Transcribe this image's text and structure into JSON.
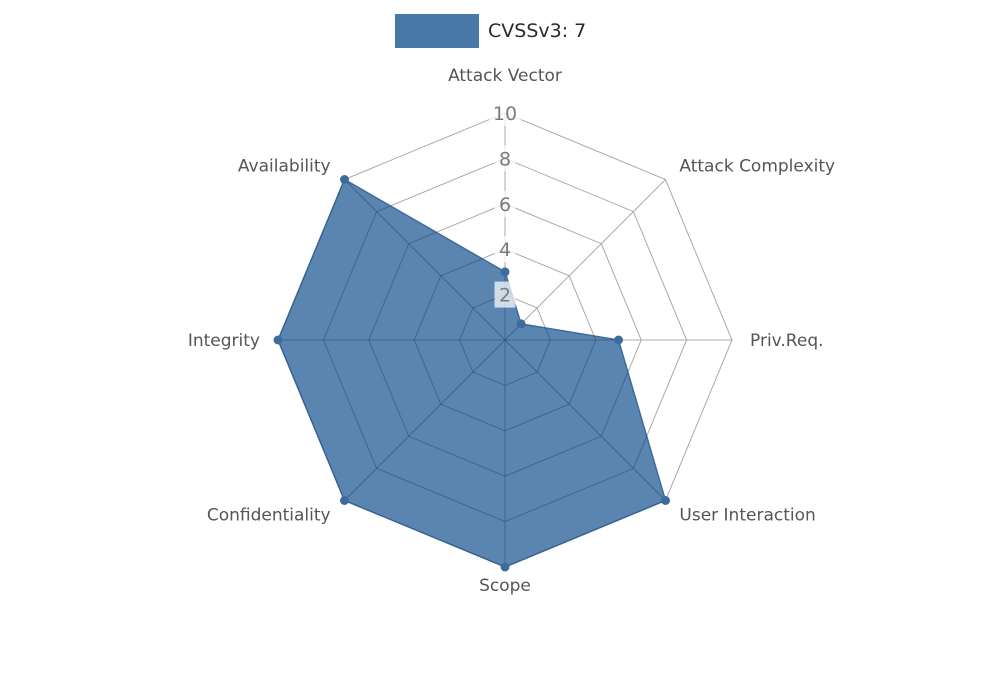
{
  "chart_data": {
    "type": "radar",
    "title": "",
    "legend": {
      "label": "CVSSv3: 7",
      "swatch_color": "#4878a8",
      "position": "top"
    },
    "categories": [
      "Attack Vector",
      "Attack Complexity",
      "Priv.Req.",
      "User Interaction",
      "Scope",
      "Confidentiality",
      "Integrity",
      "Availability"
    ],
    "series": [
      {
        "name": "CVSSv3: 7",
        "values": [
          3,
          1,
          5,
          10,
          10,
          10,
          10,
          10
        ],
        "fill_color": "#4878a8",
        "fill_opacity": 0.9,
        "stroke_color": "#3d6c9c",
        "marker_color": "#3d6c9c"
      }
    ],
    "scale": {
      "min": 0,
      "max": 10,
      "tick_values": [
        2,
        4,
        6,
        8,
        10
      ]
    },
    "axis_start": "top",
    "direction": "clockwise",
    "grid_shape": "polygon",
    "grid_on": true,
    "colors": {
      "background": "#ffffff",
      "grid": "#a9a9a9",
      "grid_inner_overlay": "rgba(25,45,75,0.30)",
      "tick_text": "#7a7a7a",
      "tick_bg": "rgba(255,255,255,0.72)",
      "axis_label": "#555555",
      "legend_text": "#2a2a2a"
    }
  }
}
